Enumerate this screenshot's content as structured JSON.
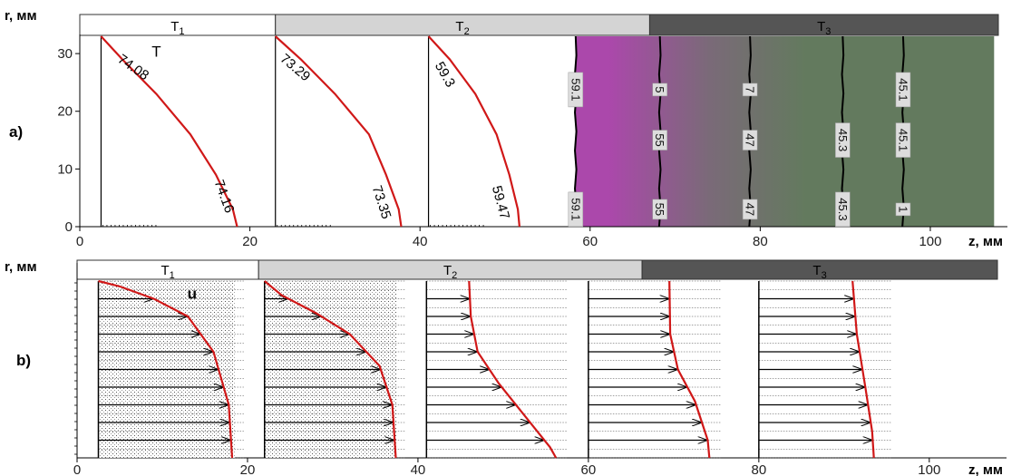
{
  "chart_data": [
    {
      "panel": "a)",
      "type": "line",
      "quantity": "T",
      "ylabel": "r, мм",
      "xlabel": "z, мм",
      "xlim": [
        0,
        108
      ],
      "ylim": [
        0,
        33
      ],
      "x_ticks": [
        0,
        20,
        40,
        60,
        80,
        100
      ],
      "y_ticks": [
        0,
        10,
        20,
        30
      ],
      "zones": [
        {
          "name": "T1",
          "x_start": 0,
          "x_end": 23,
          "color": "#ffffff"
        },
        {
          "name": "T2",
          "x_start": 23,
          "x_end": 67,
          "color": "#d4d4d4"
        },
        {
          "name": "T3",
          "x_start": 67,
          "x_end": 108,
          "color": "#555555"
        }
      ],
      "profiles": [
        {
          "base_z": 2.5,
          "points": [
            [
              2.5,
              33
            ],
            [
              5,
              29
            ],
            [
              9,
              23
            ],
            [
              13,
              16
            ],
            [
              16,
              9
            ],
            [
              18,
              3
            ],
            [
              18.5,
              0
            ]
          ]
        },
        {
          "base_z": 23,
          "points": [
            [
              23,
              33
            ],
            [
              26,
              29
            ],
            [
              30,
              23
            ],
            [
              34,
              16
            ],
            [
              36,
              9
            ],
            [
              37.5,
              3
            ],
            [
              37.8,
              0
            ]
          ]
        },
        {
          "base_z": 41,
          "points": [
            [
              41,
              33
            ],
            [
              43.5,
              29
            ],
            [
              46.5,
              23
            ],
            [
              49,
              16
            ],
            [
              50.5,
              9
            ],
            [
              51.5,
              3
            ],
            [
              51.7,
              0
            ]
          ]
        }
      ],
      "isolines": [
        {
          "z": 58.3,
          "label_top": "59.1",
          "label_bottom": "59.1"
        },
        {
          "z": 68.2,
          "label_top": "5",
          "label_mid": "55",
          "label_bottom": "55"
        },
        {
          "z": 78.8,
          "label_top": "7",
          "label_mid": "47",
          "label_bottom": "47"
        },
        {
          "z": 89.7,
          "label_mid": "45.3",
          "label_bottom": "45.3"
        },
        {
          "z": 96.8,
          "label_top": "45.1",
          "label_mid": "45.1",
          "label_bottom": "1"
        }
      ],
      "labels": [
        {
          "text": "T",
          "z": 9,
          "r": 29.5
        },
        {
          "text": "74.08",
          "z": 6,
          "r": 27,
          "rotate": 35
        },
        {
          "text": "74.16",
          "z": 16.5,
          "r": 5,
          "rotate": 70
        },
        {
          "text": "73.29",
          "z": 25,
          "r": 27,
          "rotate": 40
        },
        {
          "text": "73.35",
          "z": 35,
          "r": 4,
          "rotate": 72
        },
        {
          "text": "59.3",
          "z": 42.5,
          "r": 26,
          "rotate": 60
        },
        {
          "text": "59.47",
          "z": 49,
          "r": 4,
          "rotate": 75
        }
      ],
      "fill": [
        {
          "color": "#a84aa8",
          "x_start": 58.3,
          "x_end": 67.5
        },
        {
          "color": "#637a5e",
          "x_start": 67.5,
          "x_end": 107.5
        }
      ]
    },
    {
      "panel": "b)",
      "type": "line",
      "quantity": "u",
      "ylabel": "r, мм",
      "xlabel": "z, мм",
      "xlim": [
        0,
        108
      ],
      "x_ticks": [
        0,
        20,
        40,
        60,
        80,
        100
      ],
      "zones": [
        {
          "name": "T1",
          "x_start": 0,
          "x_end": 21.3,
          "color": "#ffffff"
        },
        {
          "name": "T2",
          "x_start": 21.3,
          "x_end": 66.3,
          "color": "#d4d4d4"
        },
        {
          "name": "T3",
          "x_start": 66.3,
          "x_end": 108,
          "color": "#555555"
        }
      ],
      "profiles": [
        {
          "base_z": 2.5,
          "points": [
            [
              2.5,
              1
            ],
            [
              5,
              0.97
            ],
            [
              9,
              0.9
            ],
            [
              13,
              0.8
            ],
            [
              16,
              0.6
            ],
            [
              17.8,
              0.3
            ],
            [
              18.2,
              0
            ]
          ]
        },
        {
          "base_z": 22,
          "points": [
            [
              22,
              1
            ],
            [
              24,
              0.92
            ],
            [
              28,
              0.82
            ],
            [
              32,
              0.7
            ],
            [
              35.5,
              0.52
            ],
            [
              37,
              0.3
            ],
            [
              37.4,
              0
            ]
          ]
        },
        {
          "base_z": 41,
          "points": [
            [
              46,
              1
            ],
            [
              46.2,
              0.8
            ],
            [
              47,
              0.6
            ],
            [
              49.5,
              0.42
            ],
            [
              53.5,
              0.18
            ],
            [
              55.5,
              0.06
            ],
            [
              56.2,
              0
            ]
          ]
        },
        {
          "base_z": 60,
          "points": [
            [
              69.5,
              1
            ],
            [
              69.6,
              0.7
            ],
            [
              70.5,
              0.5
            ],
            [
              72.5,
              0.32
            ],
            [
              74,
              0.1
            ],
            [
              74.2,
              0
            ]
          ]
        },
        {
          "base_z": 80,
          "points": [
            [
              91,
              1
            ],
            [
              91.5,
              0.7
            ],
            [
              92.5,
              0.4
            ],
            [
              93.3,
              0.15
            ],
            [
              93.5,
              0
            ]
          ]
        }
      ],
      "labels": [
        {
          "text": "u",
          "z": 13.5,
          "r": 0.9
        }
      ]
    }
  ]
}
